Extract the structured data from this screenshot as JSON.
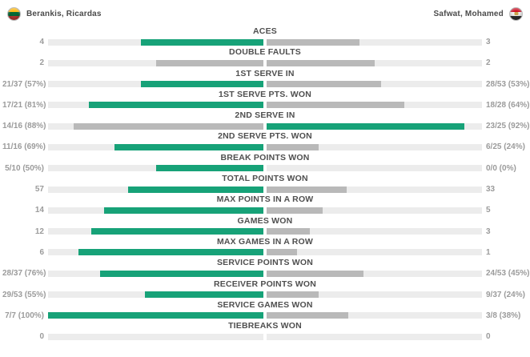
{
  "header": {
    "left_player": {
      "name": "Berankis, Ricardas",
      "flag_icon": "lithuania-flag",
      "flag_colors": [
        "#fdb913",
        "#046a38",
        "#be3a34"
      ]
    },
    "right_player": {
      "name": "Safwat, Mohamed",
      "flag_icon": "egypt-flag",
      "flag_colors": [
        "#ce1126",
        "#f6f6f6",
        "#2f2f2f"
      ],
      "flag_emblem_color": "#c9a34c"
    }
  },
  "colors": {
    "win_fill": "#17a278",
    "lose_fill": "#b9b9b9",
    "track": "#ececec",
    "label_text": "#4f4f4f",
    "value_text": "#9b9b9b",
    "name_text": "#4a4a4a",
    "background": "#ffffff"
  },
  "chart_data": {
    "type": "bar",
    "layout": "paired-horizontal-bars-diverging-from-center",
    "title": "Tennis match statistics comparison",
    "grid": false,
    "legend_position": "top (player names with flags)",
    "categories": [
      "ACES",
      "DOUBLE FAULTS",
      "1ST SERVE IN",
      "1ST SERVE PTS. WON",
      "2ND SERVE IN",
      "2ND SERVE PTS. WON",
      "BREAK POINTS WON",
      "TOTAL POINTS WON",
      "MAX POINTS IN A ROW",
      "GAMES WON",
      "MAX GAMES IN A ROW",
      "SERVICE POINTS WON",
      "RECEIVER POINTS WON",
      "SERVICE GAMES WON",
      "TIEBREAKS WON"
    ],
    "series": [
      {
        "name": "Berankis, Ricardas",
        "side": "left",
        "value_labels": [
          "4",
          "2",
          "21/37 (57%)",
          "17/21 (81%)",
          "14/16 (88%)",
          "11/16 (69%)",
          "5/10 (50%)",
          "57",
          "14",
          "12",
          "6",
          "28/37 (76%)",
          "29/53 (55%)",
          "7/7 (100%)",
          "0"
        ],
        "fill_pct": [
          57,
          50,
          57,
          81,
          88,
          69,
          50,
          63,
          74,
          80,
          86,
          76,
          55,
          100,
          0
        ],
        "is_leading": [
          true,
          false,
          true,
          true,
          false,
          true,
          true,
          true,
          true,
          true,
          true,
          true,
          true,
          true,
          false
        ]
      },
      {
        "name": "Safwat, Mohamed",
        "side": "right",
        "value_labels": [
          "3",
          "2",
          "28/53 (53%)",
          "18/28 (64%)",
          "23/25 (92%)",
          "6/25 (24%)",
          "0/0 (0%)",
          "33",
          "5",
          "3",
          "1",
          "24/53 (45%)",
          "9/37 (24%)",
          "3/8 (38%)",
          "0"
        ],
        "fill_pct": [
          43,
          50,
          53,
          64,
          92,
          24,
          0,
          37,
          26,
          20,
          14,
          45,
          24,
          38,
          0
        ],
        "is_leading": [
          false,
          false,
          false,
          false,
          true,
          false,
          false,
          false,
          false,
          false,
          false,
          false,
          false,
          false,
          false
        ]
      }
    ]
  }
}
